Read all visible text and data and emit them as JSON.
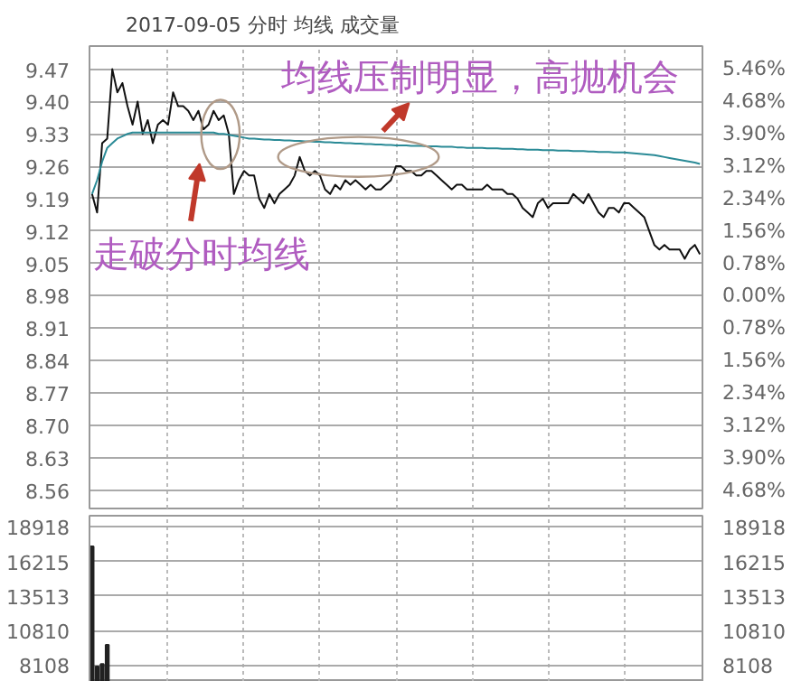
{
  "chart_data": [
    {
      "type": "line",
      "title": "2017-09-05 分时 均线 成交量",
      "categories": [
        null,
        null,
        null,
        null,
        null,
        null,
        null,
        null,
        null,
        null,
        null,
        null,
        null,
        null,
        null,
        null,
        null,
        null,
        null,
        null,
        null,
        null,
        null,
        null,
        null,
        null,
        null,
        null,
        null,
        null,
        null,
        null,
        null,
        null,
        null,
        null,
        null,
        null,
        null,
        null,
        null,
        null,
        null,
        null,
        null,
        null,
        null,
        null,
        null,
        null,
        null,
        null,
        null,
        null,
        null,
        null,
        null,
        null,
        null,
        null,
        null,
        null,
        null,
        null,
        null,
        null,
        null,
        null,
        null,
        null,
        null,
        null,
        null,
        null,
        null,
        null,
        null,
        null,
        null,
        null,
        null,
        null,
        null,
        null,
        null,
        null,
        null,
        null,
        null,
        null,
        null,
        null,
        null,
        null,
        null,
        null,
        null,
        null,
        null,
        null,
        null,
        null,
        null,
        null,
        null,
        null,
        null,
        null,
        null,
        null,
        null,
        null,
        null,
        null,
        null,
        null,
        null,
        null,
        null,
        null,
        null
      ],
      "ylim": [
        8.52,
        9.52
      ],
      "y2lim": [
        -5.12,
        6.01
      ],
      "yticks": [
        8.56,
        8.63,
        {
          "value": 8.7,
          "label": "8.70"
        },
        8.77,
        8.84,
        8.91,
        8.98,
        9.05,
        9.12,
        9.19,
        9.26,
        9.33,
        {
          "value": 9.4,
          "label": "9.40"
        },
        9.47
      ],
      "y2ticks": [
        {
          "value": -4.68,
          "label": "4.68%"
        },
        {
          "value": -3.9,
          "label": "3.90%"
        },
        {
          "value": -3.12,
          "label": "3.12%"
        },
        {
          "value": -2.34,
          "label": "2.34%"
        },
        {
          "value": -1.56,
          "label": "1.56%"
        },
        {
          "value": -0.78,
          "label": "0.78%"
        },
        {
          "value": 0,
          "label": "0.00%"
        },
        {
          "value": 0.78,
          "label": "0.78%"
        },
        {
          "value": 1.56,
          "label": "1.56%"
        },
        {
          "value": 2.34,
          "label": "2.34%"
        },
        {
          "value": 3.12,
          "label": "3.12%"
        },
        {
          "value": 3.9,
          "label": "3.90%"
        },
        {
          "value": 4.68,
          "label": "4.68%"
        },
        {
          "value": 5.46,
          "label": "5.46%"
        }
      ],
      "grid": true,
      "series": [
        {
          "color": "#111111",
          "values": [
            9.2,
            9.16,
            9.31,
            9.32,
            9.47,
            9.42,
            9.44,
            9.39,
            9.35,
            9.4,
            9.33,
            9.36,
            9.31,
            9.35,
            9.36,
            9.35,
            9.42,
            9.39,
            9.39,
            9.38,
            9.36,
            9.38,
            9.34,
            9.35,
            9.38,
            9.36,
            9.37,
            9.33,
            9.2,
            9.23,
            9.25,
            9.24,
            9.24,
            9.19,
            9.17,
            9.2,
            9.18,
            9.2,
            9.21,
            9.22,
            9.24,
            9.28,
            9.25,
            9.24,
            9.25,
            9.24,
            9.21,
            9.2,
            9.22,
            9.21,
            9.23,
            9.22,
            9.23,
            9.22,
            9.21,
            9.22,
            9.21,
            9.21,
            9.22,
            9.23,
            9.26,
            9.26,
            9.25,
            9.25,
            9.24,
            9.24,
            9.25,
            9.25,
            9.24,
            9.23,
            9.22,
            9.21,
            9.22,
            9.22,
            9.21,
            9.21,
            9.21,
            9.21,
            9.22,
            9.21,
            9.21,
            9.21,
            9.2,
            9.2,
            9.19,
            9.17,
            9.16,
            9.15,
            9.18,
            9.19,
            9.17,
            9.18,
            9.18,
            9.18,
            9.18,
            9.2,
            9.19,
            9.18,
            9.2,
            9.18,
            9.16,
            9.15,
            9.17,
            9.17,
            9.16,
            9.18,
            9.18,
            9.17,
            9.16,
            9.15,
            9.12,
            9.09,
            9.08,
            9.09,
            9.08,
            9.08,
            9.08,
            9.06,
            9.08,
            9.09,
            9.07
          ]
        },
        {
          "color": "#2a8a96",
          "values": [
            9.2,
            9.23,
            9.27,
            9.3,
            9.31,
            9.32,
            9.325,
            9.33,
            9.333,
            9.333,
            9.333,
            9.333,
            9.333,
            9.333,
            9.333,
            9.333,
            9.333,
            9.333,
            9.333,
            9.333,
            9.333,
            9.333,
            9.333,
            9.333,
            9.333,
            9.33,
            9.33,
            9.328,
            9.326,
            9.324,
            9.322,
            9.32,
            9.32,
            9.319,
            9.318,
            9.318,
            9.317,
            9.317,
            9.316,
            9.316,
            9.315,
            9.315,
            9.314,
            9.314,
            9.313,
            9.313,
            9.312,
            9.312,
            9.311,
            9.311,
            9.31,
            9.31,
            9.309,
            9.309,
            9.308,
            9.308,
            9.307,
            9.307,
            9.306,
            9.306,
            9.305,
            9.305,
            9.305,
            9.304,
            9.304,
            9.304,
            9.303,
            9.303,
            9.303,
            9.302,
            9.302,
            9.302,
            9.301,
            9.301,
            9.3,
            9.3,
            9.3,
            9.3,
            9.299,
            9.299,
            9.299,
            9.298,
            9.298,
            9.298,
            9.297,
            9.297,
            9.296,
            9.296,
            9.296,
            9.295,
            9.295,
            9.295,
            9.294,
            9.294,
            9.294,
            9.293,
            9.293,
            9.293,
            9.292,
            9.292,
            9.291,
            9.291,
            9.291,
            9.29,
            9.29,
            9.29,
            9.289,
            9.288,
            9.287,
            9.286,
            9.285,
            9.284,
            9.282,
            9.28,
            9.278,
            9.276,
            9.274,
            9.272,
            9.27,
            9.268,
            9.265
          ]
        }
      ],
      "annotations": [
        "走破分时均线",
        "均线压制明显，高抛机会"
      ]
    },
    {
      "type": "bar",
      "categories": [
        null,
        null,
        null,
        null,
        null,
        null,
        null,
        null,
        null,
        null,
        null,
        null,
        null,
        null,
        null,
        null,
        null,
        null,
        null,
        null,
        null,
        null,
        null,
        null,
        null,
        null,
        null,
        null,
        null,
        null,
        null,
        null,
        null,
        null,
        null,
        null,
        null,
        null,
        null,
        null,
        null,
        null,
        null,
        null,
        null,
        null,
        null,
        null,
        null,
        null,
        null,
        null,
        null,
        null,
        null,
        null,
        null,
        null,
        null,
        null,
        null,
        null,
        null,
        null,
        null,
        null,
        null,
        null,
        null,
        null,
        null,
        null,
        null,
        null,
        null,
        null,
        null,
        null,
        null,
        null,
        null,
        null,
        null,
        null,
        null,
        null,
        null,
        null,
        null,
        null,
        null,
        null,
        null,
        null,
        null,
        null,
        null,
        null,
        null,
        null,
        null,
        null,
        null,
        null,
        null,
        null,
        null,
        null,
        null,
        null,
        null,
        null,
        null,
        null,
        null,
        null,
        null,
        null,
        null,
        null,
        null
      ],
      "ylim": [
        6800,
        19800
      ],
      "y2lim": [
        6800,
        19800
      ],
      "yticks": [
        8108,
        10810,
        13513,
        16215,
        18918
      ],
      "y2ticks": [
        8108,
        10810,
        13513,
        16215,
        18918
      ],
      "grid": true,
      "series": [
        {
          "color": "#222222",
          "values": [
            17400,
            8000,
            8200,
            9700,
            null,
            null,
            null,
            null,
            null,
            null,
            null,
            null,
            null,
            null,
            null,
            null,
            null,
            null,
            null,
            null,
            null,
            null,
            null,
            null,
            null,
            null,
            null,
            null,
            null,
            null,
            null,
            null,
            null,
            null,
            null,
            null,
            null,
            null,
            null,
            null,
            null,
            null,
            null,
            null,
            null,
            null,
            null,
            null,
            null,
            null,
            null,
            null,
            null,
            null,
            null,
            null,
            null,
            null,
            null,
            null,
            null,
            null,
            null,
            null,
            null,
            null,
            null,
            null,
            null,
            null,
            null,
            null,
            null,
            null,
            null,
            null,
            null,
            null,
            null,
            null,
            null,
            null,
            null,
            null,
            null,
            null,
            null,
            null,
            null,
            null,
            null,
            null,
            null,
            null,
            null,
            null,
            null,
            null,
            null,
            null,
            null,
            null,
            null,
            null,
            null,
            null,
            null,
            null,
            null,
            null,
            null,
            null,
            null,
            null,
            null,
            null,
            null,
            null,
            null,
            null,
            null
          ]
        }
      ]
    }
  ]
}
